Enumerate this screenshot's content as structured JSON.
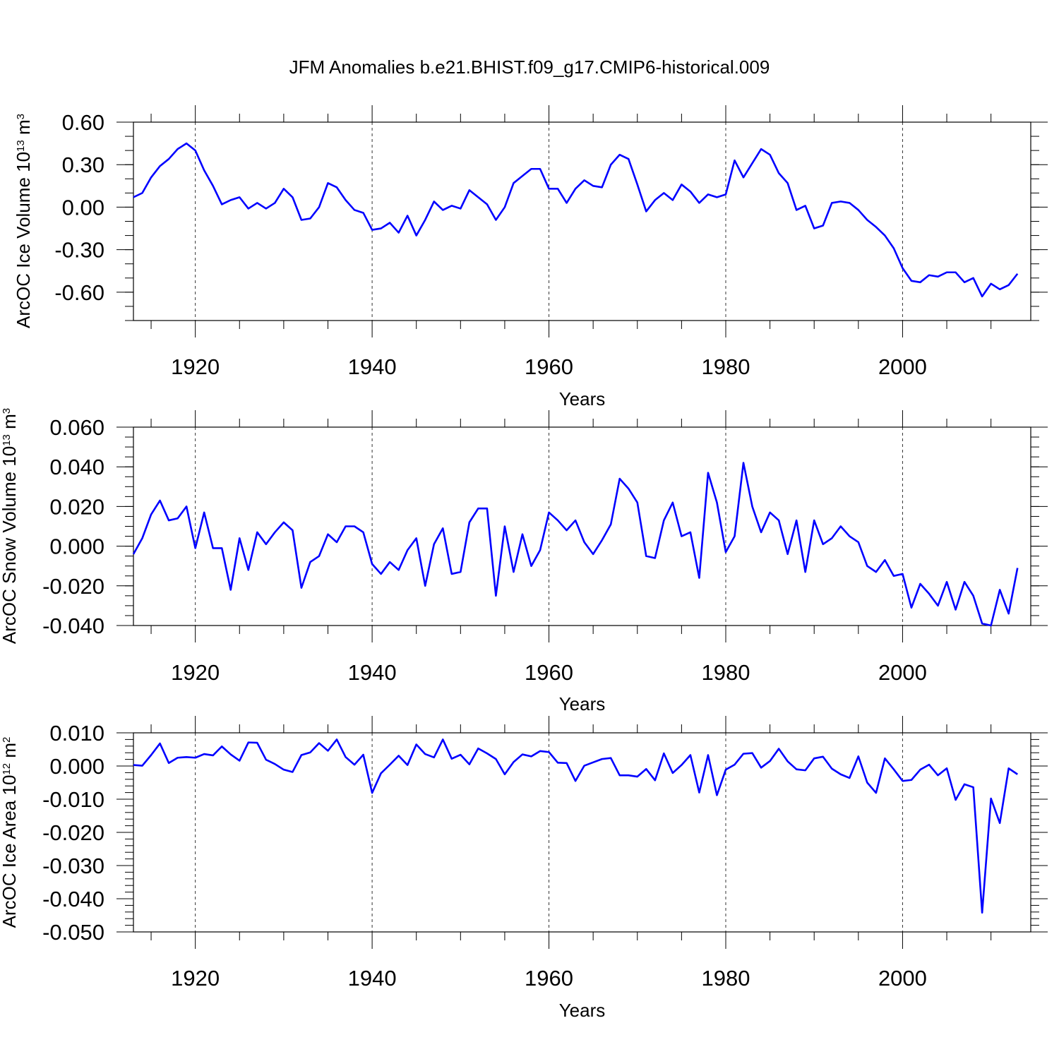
{
  "figure": {
    "title": "JFM Anomalies b.e21.BHIST.f09_g17.CMIP6-historical.009",
    "line_color": "#0000ff"
  },
  "chart_data": [
    {
      "type": "line",
      "name": "ice-volume",
      "ylabel_main": "ArcOC Ice Volume 10",
      "ylabel_exp": "13",
      "ylabel_unit": " m",
      "ylabel_unit_exp": "3",
      "xlabel": "Years",
      "xlim": [
        1913,
        2014.5
      ],
      "ylim": [
        -0.8,
        0.6
      ],
      "yticks": [
        0.6,
        0.3,
        0.0,
        -0.3,
        -0.6
      ],
      "ytick_labels": [
        "0.60",
        "0.30",
        "0.00",
        "-0.30",
        "-0.60"
      ],
      "yminor_step": 0.1,
      "xticks": [
        1920,
        1940,
        1960,
        1980,
        2000
      ],
      "xtick_labels": [
        "1920",
        "1940",
        "1960",
        "1980",
        "2000"
      ],
      "grid_x": true,
      "x_start": 1913,
      "values": [
        0.07,
        0.1,
        0.21,
        0.29,
        0.34,
        0.41,
        0.45,
        0.4,
        0.26,
        0.15,
        0.02,
        0.05,
        0.07,
        -0.01,
        0.03,
        -0.01,
        0.03,
        0.13,
        0.07,
        -0.09,
        -0.08,
        0.0,
        0.17,
        0.14,
        0.05,
        -0.02,
        -0.04,
        -0.16,
        -0.15,
        -0.11,
        -0.18,
        -0.06,
        -0.2,
        -0.09,
        0.04,
        -0.02,
        0.01,
        -0.01,
        0.12,
        0.07,
        0.02,
        -0.09,
        0.0,
        0.17,
        0.22,
        0.27,
        0.27,
        0.13,
        0.13,
        0.03,
        0.13,
        0.19,
        0.15,
        0.14,
        0.3,
        0.37,
        0.34,
        0.16,
        -0.03,
        0.05,
        0.1,
        0.05,
        0.16,
        0.11,
        0.03,
        0.09,
        0.07,
        0.09,
        0.33,
        0.21,
        0.31,
        0.41,
        0.37,
        0.24,
        0.17,
        -0.02,
        0.01,
        -0.15,
        -0.13,
        0.03,
        0.04,
        0.03,
        -0.02,
        -0.09,
        -0.14,
        -0.2,
        -0.29,
        -0.43,
        -0.52,
        -0.53,
        -0.48,
        -0.49,
        -0.46,
        -0.46,
        -0.53,
        -0.5,
        -0.63,
        -0.54,
        -0.58,
        -0.55,
        -0.47
      ]
    },
    {
      "type": "line",
      "name": "snow-volume",
      "ylabel_main": "ArcOC Snow Volume 10",
      "ylabel_exp": "13",
      "ylabel_unit": " m",
      "ylabel_unit_exp": "3",
      "xlabel": "Years",
      "xlim": [
        1913,
        2014.5
      ],
      "ylim": [
        -0.04,
        0.06
      ],
      "yticks": [
        0.06,
        0.04,
        0.02,
        0.0,
        -0.02,
        -0.04
      ],
      "ytick_labels": [
        "0.060",
        "0.040",
        "0.020",
        "0.000",
        "-0.020",
        "-0.040"
      ],
      "yminor_step": 0.005,
      "xticks": [
        1920,
        1940,
        1960,
        1980,
        2000
      ],
      "xtick_labels": [
        "1920",
        "1940",
        "1960",
        "1980",
        "2000"
      ],
      "grid_x": true,
      "x_start": 1913,
      "values": [
        -0.004,
        0.004,
        0.016,
        0.023,
        0.013,
        0.014,
        0.02,
        -0.001,
        0.017,
        -0.001,
        -0.001,
        -0.022,
        0.004,
        -0.012,
        0.007,
        0.001,
        0.007,
        0.012,
        0.008,
        -0.021,
        -0.008,
        -0.005,
        0.006,
        0.002,
        0.01,
        0.01,
        0.007,
        -0.009,
        -0.014,
        -0.008,
        -0.012,
        -0.002,
        0.004,
        -0.02,
        0.001,
        0.009,
        -0.014,
        -0.013,
        0.012,
        0.019,
        0.019,
        -0.025,
        0.01,
        -0.013,
        0.006,
        -0.01,
        -0.002,
        0.017,
        0.013,
        0.008,
        0.013,
        0.002,
        -0.004,
        0.003,
        0.011,
        0.034,
        0.029,
        0.022,
        -0.005,
        -0.006,
        0.013,
        0.022,
        0.005,
        0.007,
        -0.016,
        0.037,
        0.022,
        -0.003,
        0.005,
        0.042,
        0.02,
        0.007,
        0.017,
        0.013,
        -0.004,
        0.013,
        -0.013,
        0.013,
        0.001,
        0.004,
        0.01,
        0.005,
        0.002,
        -0.01,
        -0.013,
        -0.007,
        -0.015,
        -0.014,
        -0.031,
        -0.019,
        -0.024,
        -0.03,
        -0.018,
        -0.032,
        -0.018,
        -0.025,
        -0.039,
        -0.04,
        -0.022,
        -0.034,
        -0.011
      ]
    },
    {
      "type": "line",
      "name": "ice-area",
      "ylabel_main": "ArcOC Ice Area 10",
      "ylabel_exp": "12",
      "ylabel_unit": " m",
      "ylabel_unit_exp": "2",
      "xlabel": "Years",
      "xlim": [
        1913,
        2014.5
      ],
      "ylim": [
        -0.05,
        0.01
      ],
      "yticks": [
        0.01,
        0.0,
        -0.01,
        -0.02,
        -0.03,
        -0.04,
        -0.05
      ],
      "ytick_labels": [
        "0.010",
        "0.000",
        "-0.010",
        "-0.020",
        "-0.030",
        "-0.040",
        "-0.050"
      ],
      "yminor_step": 0.002,
      "xticks": [
        1920,
        1940,
        1960,
        1980,
        2000
      ],
      "xtick_labels": [
        "1920",
        "1940",
        "1960",
        "1980",
        "2000"
      ],
      "grid_x": true,
      "x_start": 1913,
      "values": [
        0.0003,
        0.0001,
        0.0033,
        0.0068,
        0.0009,
        0.0025,
        0.0027,
        0.0025,
        0.0036,
        0.0032,
        0.0059,
        0.0035,
        0.0016,
        0.0071,
        0.007,
        0.0019,
        0.0006,
        -0.0011,
        -0.0018,
        0.0033,
        0.0041,
        0.0069,
        0.0046,
        0.008,
        0.0027,
        0.0004,
        0.0034,
        -0.0081,
        -0.0022,
        0.0004,
        0.0031,
        0.0003,
        0.0065,
        0.0036,
        0.0026,
        0.008,
        0.0022,
        0.0034,
        0.0005,
        0.0053,
        0.0038,
        0.0021,
        -0.0025,
        0.0012,
        0.0035,
        0.0029,
        0.0045,
        0.0042,
        0.001,
        0.0009,
        -0.0045,
        0.0001,
        0.0011,
        0.0021,
        0.0024,
        -0.0028,
        -0.0028,
        -0.0032,
        -0.0009,
        -0.0043,
        0.0038,
        -0.0021,
        0.0003,
        0.0033,
        -0.008,
        0.0033,
        -0.0088,
        -0.0011,
        0.0004,
        0.0037,
        0.0039,
        -0.0005,
        0.0015,
        0.0052,
        0.0014,
        -0.001,
        -0.0013,
        0.0023,
        0.0028,
        -0.0008,
        -0.0025,
        -0.0036,
        0.0029,
        -0.005,
        -0.0081,
        0.0023,
        -0.001,
        -0.0045,
        -0.0042,
        -0.0011,
        0.0004,
        -0.0028,
        -0.0007,
        -0.0102,
        -0.0055,
        -0.0064,
        -0.0442,
        -0.0098,
        -0.0172,
        -0.0007,
        -0.0025
      ]
    }
  ]
}
